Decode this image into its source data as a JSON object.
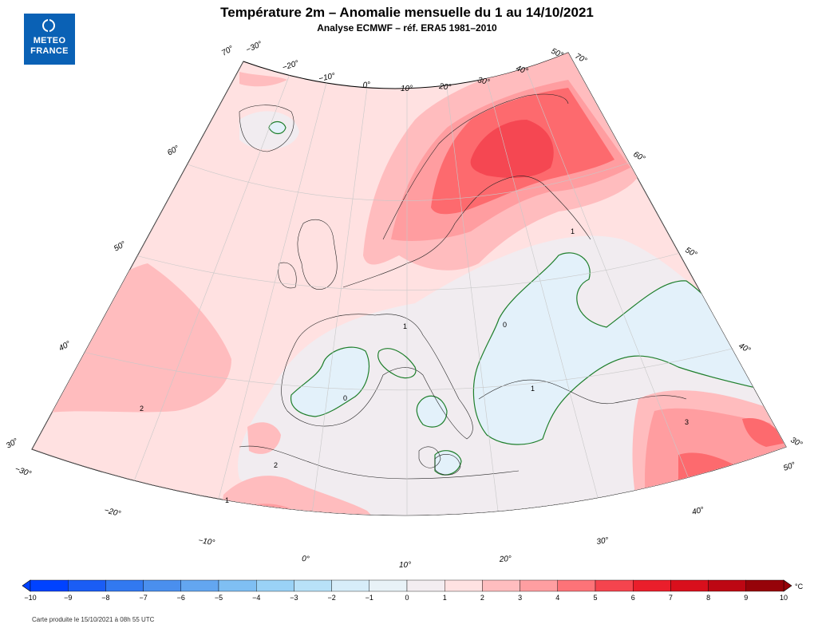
{
  "header": {
    "title": "Température 2m – Anomalie mensuelle du 1 au 14/10/2021",
    "subtitle": "Analyse ECMWF – réf. ERA5 1981–2010"
  },
  "logo": {
    "line1": "METEO",
    "line2": "FRANCE"
  },
  "map": {
    "lat_labels_left": [
      {
        "text": "70°"
      },
      {
        "text": "60°"
      },
      {
        "text": "50°"
      },
      {
        "text": "40°"
      },
      {
        "text": "30°"
      }
    ],
    "lat_labels_right": [
      {
        "text": "70°"
      },
      {
        "text": "60°"
      },
      {
        "text": "50°"
      },
      {
        "text": "40°"
      },
      {
        "text": "30°"
      }
    ],
    "lon_labels_top": [
      "−30°",
      "−20°",
      "−10°",
      "0°",
      "10°",
      "20°",
      "30°",
      "40°",
      "50°"
    ],
    "lon_labels_bottom": [
      "−30°",
      "−20°",
      "−10°",
      "0°",
      "10°",
      "20°",
      "30°",
      "40°",
      "50°"
    ],
    "contour_labels": [
      "2",
      "1",
      "0",
      "1",
      "3",
      "2",
      "1",
      "0",
      "1"
    ],
    "colors": {
      "anom_lt0": "#e3f1fa",
      "anom_0_1": "#f1ecf0",
      "anom_1_2": "#ffe1e1",
      "anom_2_3": "#ffbcbe",
      "anom_3_4": "#ff9da0",
      "anom_4_5": "#fd6a6e",
      "anom_5_6": "#f54752",
      "zero_line": "#1f7f2c",
      "coastline": "#222222"
    }
  },
  "colorbar": {
    "ticks": [
      "−10",
      "−9",
      "−8",
      "−7",
      "−6",
      "−5",
      "−4",
      "−3",
      "−2",
      "−1",
      "0",
      "1",
      "2",
      "3",
      "4",
      "5",
      "6",
      "7",
      "8",
      "9",
      "10"
    ],
    "unit": "°C",
    "colors": [
      "#0042ff",
      "#1a5df5",
      "#3279f0",
      "#4a8fee",
      "#63a6f0",
      "#7fbff3",
      "#9ad2f6",
      "#b8e1f8",
      "#d7edf9",
      "#e8f2f7",
      "#f3edf1",
      "#ffe2e2",
      "#ffbdbf",
      "#ff9ea1",
      "#fd7378",
      "#f5444e",
      "#ea1e2b",
      "#d90f1c",
      "#bd0713",
      "#960309"
    ]
  },
  "credit": "Carte produite le 15/10/2021 à 08h 55 UTC"
}
